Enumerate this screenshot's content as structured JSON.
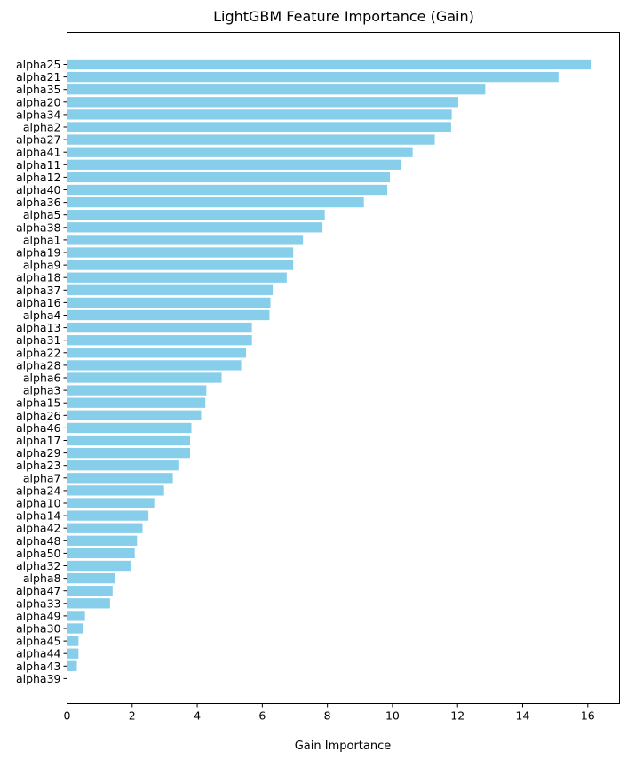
{
  "chart_data": {
    "type": "bar",
    "orientation": "horizontal",
    "title": "LightGBM Feature Importance (Gain)",
    "xlabel": "Gain Importance",
    "ylabel": "",
    "xlim": [
      0,
      16.9
    ],
    "xticks": [
      0,
      2,
      4,
      6,
      8,
      10,
      12,
      14,
      16
    ],
    "grid": false,
    "bar_color": "#87ceeb",
    "categories": [
      "alpha25",
      "alpha21",
      "alpha35",
      "alpha20",
      "alpha34",
      "alpha2",
      "alpha27",
      "alpha41",
      "alpha11",
      "alpha12",
      "alpha40",
      "alpha36",
      "alpha5",
      "alpha38",
      "alpha1",
      "alpha19",
      "alpha9",
      "alpha18",
      "alpha37",
      "alpha16",
      "alpha4",
      "alpha13",
      "alpha31",
      "alpha22",
      "alpha28",
      "alpha6",
      "alpha3",
      "alpha15",
      "alpha26",
      "alpha46",
      "alpha17",
      "alpha29",
      "alpha23",
      "alpha7",
      "alpha24",
      "alpha10",
      "alpha14",
      "alpha42",
      "alpha48",
      "alpha50",
      "alpha32",
      "alpha8",
      "alpha47",
      "alpha33",
      "alpha49",
      "alpha30",
      "alpha45",
      "alpha44",
      "alpha43",
      "alpha39"
    ],
    "values": [
      16.1,
      15.1,
      12.85,
      12.02,
      11.82,
      11.8,
      11.3,
      10.62,
      10.25,
      9.92,
      9.84,
      9.12,
      7.92,
      7.85,
      7.25,
      6.95,
      6.95,
      6.75,
      6.32,
      6.25,
      6.22,
      5.68,
      5.68,
      5.5,
      5.35,
      4.75,
      4.28,
      4.25,
      4.12,
      3.82,
      3.78,
      3.78,
      3.42,
      3.25,
      2.98,
      2.68,
      2.5,
      2.32,
      2.15,
      2.08,
      1.95,
      1.48,
      1.4,
      1.32,
      0.55,
      0.48,
      0.35,
      0.35,
      0.3,
      0.0
    ]
  }
}
